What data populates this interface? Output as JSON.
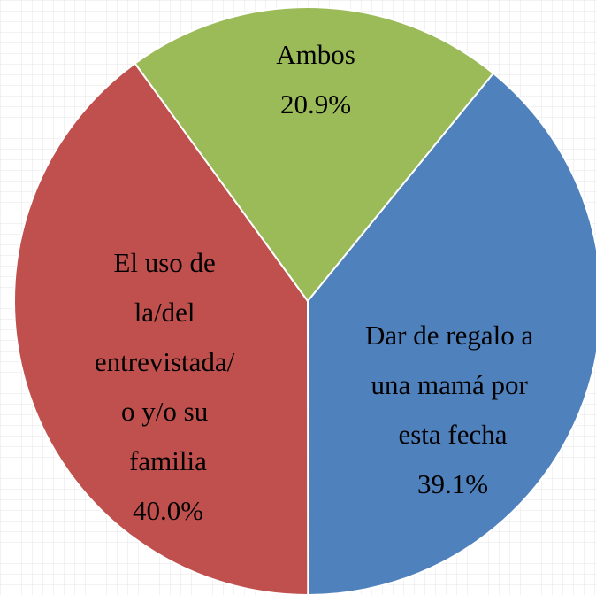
{
  "chart_data": {
    "type": "pie",
    "categories": [
      "Dar de regalo a una mamá por esta fecha",
      "El uso de la/del entrevistada/ o y/o su familia",
      "Ambos"
    ],
    "values": [
      39.1,
      40.0,
      20.9
    ],
    "value_labels": [
      "39.1%",
      "40.0%",
      "20.9%"
    ],
    "colors": [
      "#4f81bd",
      "#c0504d",
      "#9bbb59"
    ]
  }
}
